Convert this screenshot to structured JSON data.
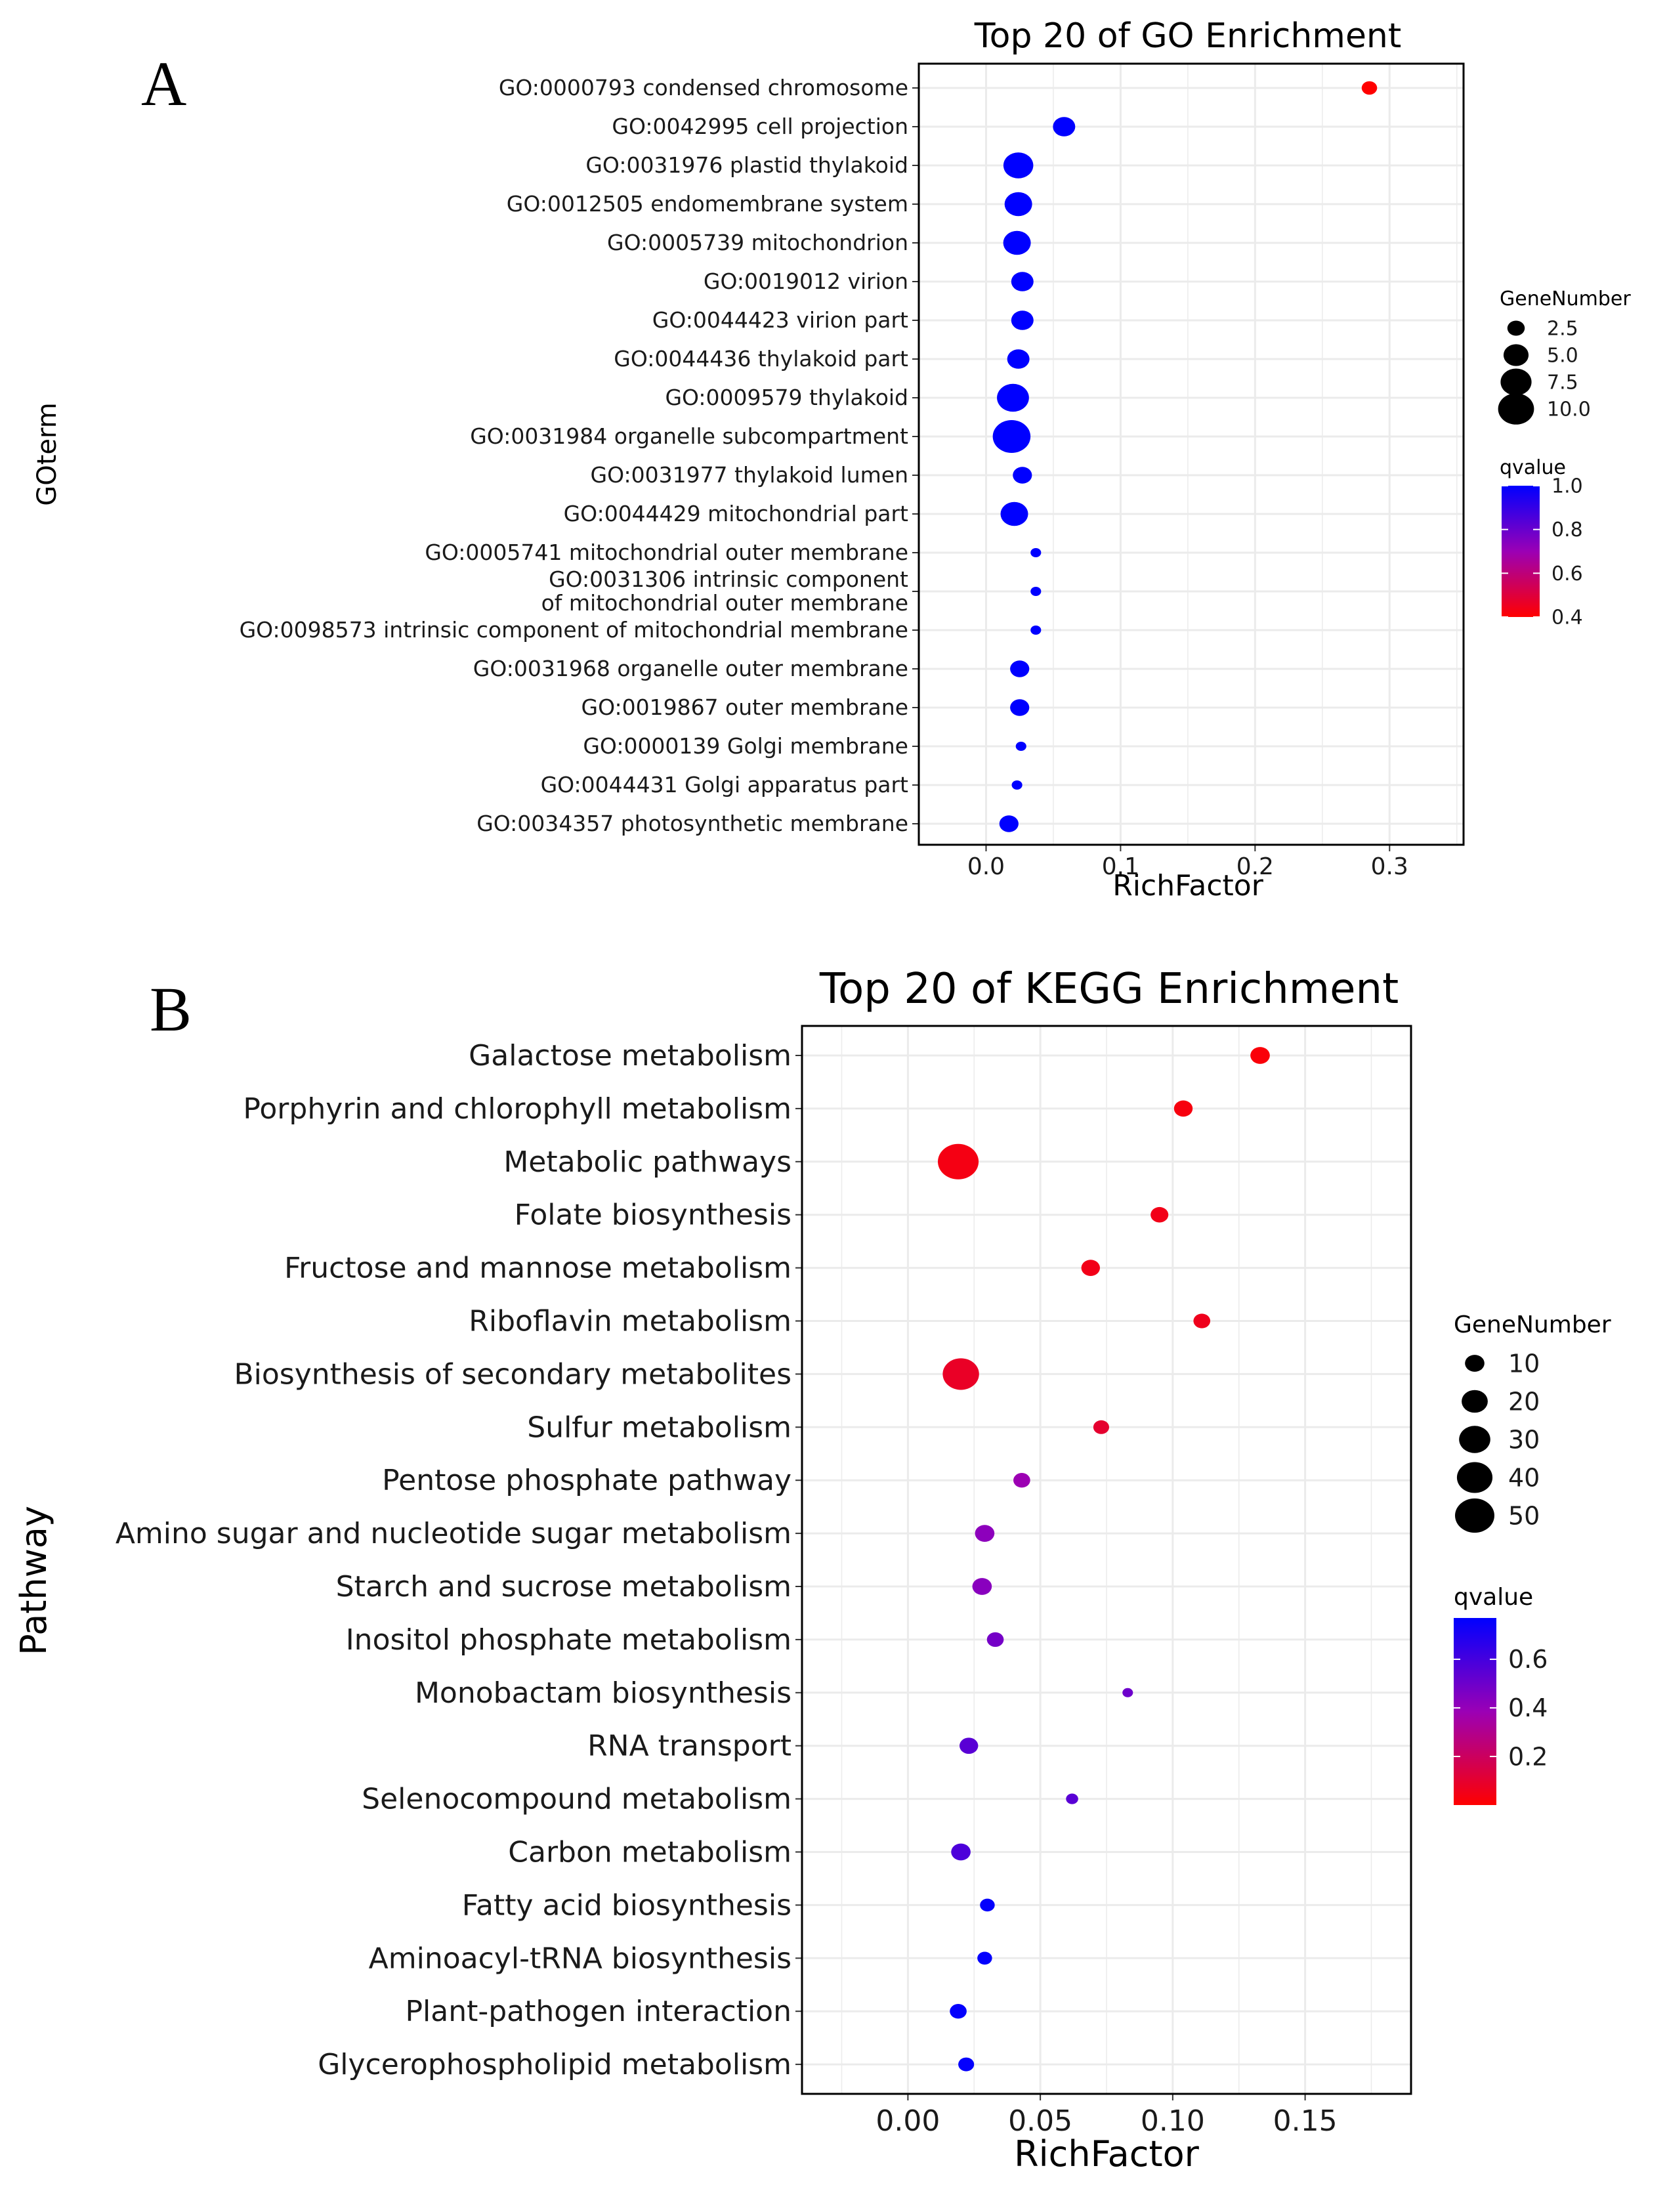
{
  "panels": {
    "a": {
      "letter": "A"
    },
    "b": {
      "letter": "B"
    }
  },
  "chart_data": [
    {
      "type": "scatter",
      "title": "Top 20 of GO Enrichment",
      "xlabel": "RichFactor",
      "ylabel": "GOterm",
      "xlim": [
        -0.05,
        0.355
      ],
      "xticks": [
        0.0,
        0.1,
        0.2,
        0.3
      ],
      "xtick_labels": [
        "0.0",
        "0.1",
        "0.2",
        "0.3"
      ],
      "grid": true,
      "legend_placement": "right",
      "categories": [
        "GO:0000793 condensed chromosome",
        "GO:0042995 cell projection",
        "GO:0031976 plastid thylakoid",
        "GO:0012505 endomembrane system",
        "GO:0005739 mitochondrion",
        "GO:0019012 virion",
        "GO:0044423 virion part",
        "GO:0044436 thylakoid part",
        "GO:0009579 thylakoid",
        "GO:0031984 organelle subcompartment",
        "GO:0031977 thylakoid lumen",
        "GO:0044429 mitochondrial part",
        "GO:0005741 mitochondrial outer membrane",
        "GO:0031306 intrinsic component of mitochondrial outer membrane",
        "GO:0098573 intrinsic component of mitochondrial membrane",
        "GO:0031968 organelle outer membrane",
        "GO:0019867 outer membrane",
        "GO:0000139 Golgi membrane",
        "GO:0044431 Golgi apparatus part",
        "GO:0034357 photosynthetic membrane"
      ],
      "category_lines": [
        [
          "GO:0000793 condensed chromosome"
        ],
        [
          "GO:0042995 cell projection"
        ],
        [
          "GO:0031976 plastid thylakoid"
        ],
        [
          "GO:0012505 endomembrane system"
        ],
        [
          "GO:0005739 mitochondrion"
        ],
        [
          "GO:0019012 virion"
        ],
        [
          "GO:0044423 virion part"
        ],
        [
          "GO:0044436 thylakoid part"
        ],
        [
          "GO:0009579 thylakoid"
        ],
        [
          "GO:0031984 organelle subcompartment"
        ],
        [
          "GO:0031977 thylakoid lumen"
        ],
        [
          "GO:0044429 mitochondrial part"
        ],
        [
          "GO:0005741 mitochondrial outer membrane"
        ],
        [
          "GO:0031306 intrinsic component",
          "of mitochondrial outer membrane"
        ],
        [
          "GO:0098573 intrinsic component of mitochondrial membrane"
        ],
        [
          "GO:0031968 organelle outer membrane"
        ],
        [
          "GO:0019867 outer membrane"
        ],
        [
          "GO:0000139 Golgi membrane"
        ],
        [
          "GO:0044431 Golgi apparatus part"
        ],
        [
          "GO:0034357 photosynthetic membrane"
        ]
      ],
      "rich_factor": [
        0.285,
        0.058,
        0.024,
        0.024,
        0.023,
        0.027,
        0.027,
        0.024,
        0.02,
        0.019,
        0.027,
        0.021,
        0.037,
        0.037,
        0.037,
        0.025,
        0.025,
        0.026,
        0.023,
        0.017
      ],
      "gene_number": [
        2,
        4,
        7,
        6,
        6,
        4,
        4,
        4,
        8,
        11,
        3,
        6,
        1,
        1,
        1,
        3,
        3,
        1,
        1,
        3
      ],
      "qvalue": [
        0.4,
        1.0,
        1.0,
        1.0,
        1.0,
        1.0,
        1.0,
        1.0,
        1.0,
        1.0,
        1.0,
        1.0,
        1.0,
        1.0,
        1.0,
        1.0,
        1.0,
        1.0,
        1.0,
        1.0
      ],
      "size_legend": {
        "title": "GeneNumber",
        "values": [
          2.5,
          5.0,
          7.5,
          10.0
        ],
        "labels": [
          "2.5",
          "5.0",
          "7.5",
          "10.0"
        ]
      },
      "color_legend": {
        "title": "qvalue",
        "range": [
          0.4,
          1.0
        ],
        "ticks": [
          1.0,
          0.8,
          0.6,
          0.4
        ],
        "tick_labels": [
          "1.0",
          "0.8",
          "0.6",
          "0.4"
        ],
        "low_color": "#ff0000",
        "mid_color": "#9b00b5",
        "high_color": "#0000ff"
      }
    },
    {
      "type": "scatter",
      "title": "Top 20 of KEGG Enrichment",
      "xlabel": "RichFactor",
      "ylabel": "Pathway",
      "xlim": [
        -0.04,
        0.19
      ],
      "xticks": [
        0.0,
        0.05,
        0.1,
        0.15
      ],
      "xtick_labels": [
        "0.00",
        "0.05",
        "0.10",
        "0.15"
      ],
      "grid": true,
      "legend_placement": "right",
      "categories": [
        "Galactose metabolism",
        "Porphyrin and chlorophyll metabolism",
        "Metabolic pathways",
        "Folate biosynthesis",
        "Fructose and mannose metabolism",
        "Riboflavin metabolism",
        "Biosynthesis of secondary metabolites",
        "Sulfur metabolism",
        "Pentose phosphate pathway",
        "Amino sugar and nucleotide sugar metabolism",
        "Starch and sucrose metabolism",
        "Inositol phosphate metabolism",
        "Monobactam biosynthesis",
        "RNA transport",
        "Selenocompound metabolism",
        "Carbon metabolism",
        "Fatty acid biosynthesis",
        "Aminoacyl-tRNA biosynthesis",
        "Plant-pathogen interaction",
        "Glycerophospholipid metabolism"
      ],
      "rich_factor": [
        0.133,
        0.104,
        0.019,
        0.095,
        0.069,
        0.111,
        0.02,
        0.073,
        0.043,
        0.029,
        0.028,
        0.033,
        0.083,
        0.023,
        0.062,
        0.02,
        0.03,
        0.029,
        0.019,
        0.022
      ],
      "gene_number": [
        10,
        9,
        54,
        8,
        9,
        7,
        42,
        6,
        7,
        10,
        10,
        7,
        2,
        9,
        3,
        10,
        5,
        5,
        7,
        6
      ],
      "qvalue": [
        0.02,
        0.03,
        0.04,
        0.05,
        0.05,
        0.06,
        0.08,
        0.1,
        0.38,
        0.42,
        0.43,
        0.48,
        0.5,
        0.55,
        0.55,
        0.58,
        0.76,
        0.76,
        0.76,
        0.76
      ],
      "size_legend": {
        "title": "GeneNumber",
        "values": [
          10,
          20,
          30,
          40,
          50
        ],
        "labels": [
          "10",
          "20",
          "30",
          "40",
          "50"
        ]
      },
      "color_legend": {
        "title": "qvalue",
        "range": [
          0.0,
          0.77
        ],
        "ticks": [
          0.6,
          0.4,
          0.2
        ],
        "tick_labels": [
          "0.6",
          "0.4",
          "0.2"
        ],
        "low_color": "#ff0000",
        "mid_color": "#9b00b5",
        "high_color": "#0000ff"
      }
    }
  ]
}
